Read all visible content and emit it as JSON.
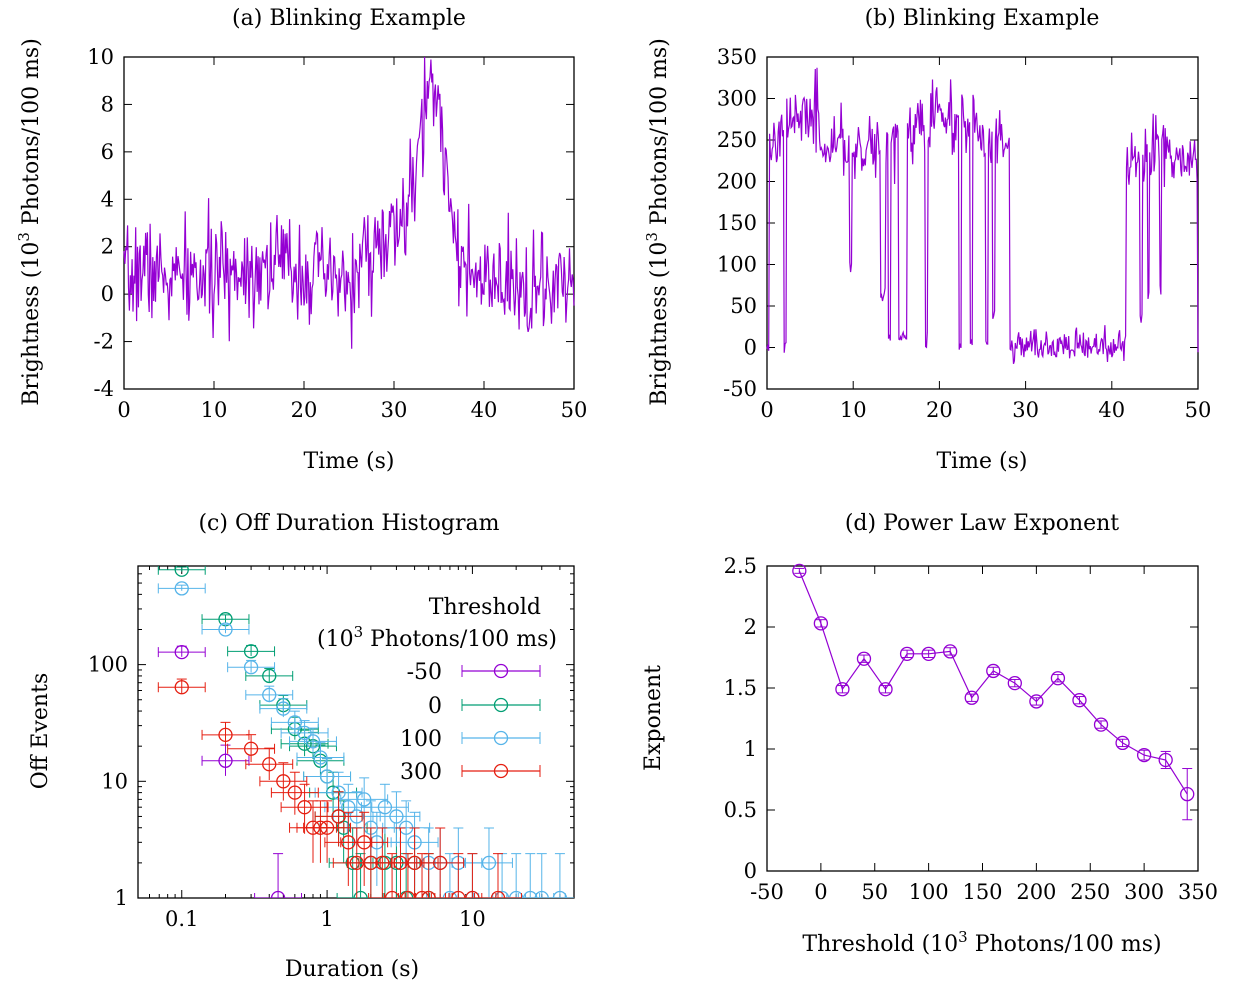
{
  "colors": {
    "purple": "#9400d3",
    "green": "#009e73",
    "lightblue": "#56b4e9",
    "red": "#e51e10",
    "axis": "#000000"
  },
  "chart_data": [
    {
      "id": "a",
      "type": "line",
      "title": "(a) Blinking Example",
      "xlabel": "Time (s)",
      "ylabel_prefix": "Brightness (10",
      "ylabel_sup": "3",
      "ylabel_suffix": " Photons/100 ms)",
      "xlim": [
        0,
        50
      ],
      "ylim": [
        -4,
        10
      ],
      "xticks": [
        0,
        10,
        20,
        30,
        40,
        50
      ],
      "yticks": [
        -4,
        -2,
        0,
        2,
        4,
        6,
        8,
        10
      ],
      "series": [
        {
          "color": "#9400d3",
          "dt": 0.1,
          "description": "Time trace sampled every 0.1 s over 0-50 s; values are the approximate segment levels (x in s, y in 10^3 photons/100 ms)",
          "profile": [
            [
              0,
              0.3
            ],
            [
              2,
              1.2
            ],
            [
              5,
              0.6
            ],
            [
              10,
              0.8
            ],
            [
              17,
              1.4
            ],
            [
              20,
              1.0
            ],
            [
              25,
              0.3
            ],
            [
              27,
              1.7
            ],
            [
              30,
              2.4
            ],
            [
              32,
              4.0
            ],
            [
              33.5,
              7.8
            ],
            [
              35,
              7.5
            ],
            [
              36,
              5.0
            ],
            [
              37.2,
              1.8
            ],
            [
              38,
              0.6
            ],
            [
              42,
              0.2
            ],
            [
              50,
              0.1
            ]
          ],
          "noise_sd": 1.05,
          "peak_max": 10.0,
          "min_value": -2.3
        }
      ]
    },
    {
      "id": "b",
      "type": "line",
      "title": "(b) Blinking Example",
      "xlabel": "Time (s)",
      "ylabel_prefix": "Brightness (10",
      "ylabel_sup": "3",
      "ylabel_suffix": " Photons/100 ms)",
      "xlim": [
        0,
        50
      ],
      "ylim": [
        -50,
        350
      ],
      "xticks": [
        0,
        10,
        20,
        30,
        40,
        50
      ],
      "yticks": [
        -50,
        0,
        50,
        100,
        150,
        200,
        250,
        300,
        350
      ],
      "series": [
        {
          "color": "#9400d3",
          "dt": 0.1,
          "description": "Blinking trace: on state ~240-290, off state ~0-20 between 28.3 s and 41.6 s, brief dips to the off level",
          "on_segments": [
            [
              0.3,
              28.2,
              252
            ],
            [
              41.7,
              50,
              225
            ]
          ],
          "on_profile": [
            [
              0.3,
              250
            ],
            [
              5,
              285
            ],
            [
              7,
              240
            ],
            [
              12,
              240
            ],
            [
              15,
              255
            ],
            [
              20,
              285
            ],
            [
              25,
              260
            ],
            [
              28.2,
              240
            ],
            [
              41.7,
              225
            ],
            [
              45,
              240
            ],
            [
              50,
              215
            ]
          ],
          "off_level": 2,
          "dips": [
            [
              2.0,
              2.3,
              5
            ],
            [
              9.5,
              9.8,
              100
            ],
            [
              13.1,
              13.7,
              60
            ],
            [
              14.0,
              14.3,
              10
            ],
            [
              15.2,
              16.2,
              12
            ],
            [
              18.3,
              18.6,
              10
            ],
            [
              22.3,
              22.6,
              0
            ],
            [
              23.6,
              23.9,
              5
            ],
            [
              25.4,
              25.7,
              5
            ],
            [
              26.2,
              26.5,
              40
            ],
            [
              43.3,
              43.6,
              40
            ],
            [
              44.2,
              44.4,
              60
            ],
            [
              45.6,
              45.8,
              70
            ]
          ],
          "peaks": [
            [
              5.8,
              337
            ],
            [
              21.3,
              323
            ],
            [
              45.1,
              280
            ]
          ],
          "min_value": -33
        }
      ]
    },
    {
      "id": "c",
      "type": "scatter",
      "title": "(c) Off Duration Histogram",
      "xlabel": "Duration (s)",
      "ylabel": "Off Events",
      "xscale": "log",
      "yscale": "log",
      "xlim": [
        0.05,
        50
      ],
      "ylim": [
        1,
        700
      ],
      "xticks": [
        0.1,
        1,
        10
      ],
      "xtick_labels": [
        "0.1",
        "1",
        "10"
      ],
      "yticks": [
        1,
        10,
        100
      ],
      "ytick_labels": [
        "1",
        "10",
        "100"
      ],
      "legend_title": "Threshold",
      "legend_subtitle_prefix": "(10",
      "legend_subtitle_sup": "3",
      "legend_subtitle_suffix": " Photons/100 ms)",
      "legend_position": "top-right",
      "series": [
        {
          "name": "-50",
          "color": "#9400d3",
          "points": [
            [
              0.1,
              128
            ],
            [
              0.2,
              15
            ],
            [
              0.46,
              1
            ]
          ]
        },
        {
          "name": "0",
          "color": "#009e73",
          "points": [
            [
              0.1,
              650
            ],
            [
              0.2,
              245
            ],
            [
              0.3,
              130
            ],
            [
              0.4,
              80
            ],
            [
              0.5,
              45
            ],
            [
              0.6,
              28
            ],
            [
              0.7,
              21
            ],
            [
              0.8,
              20
            ],
            [
              0.9,
              15
            ],
            [
              1.0,
              11
            ],
            [
              1.1,
              8
            ],
            [
              1.2,
              5
            ],
            [
              1.3,
              4
            ],
            [
              1.5,
              2
            ],
            [
              1.7,
              1
            ],
            [
              2.0,
              2
            ],
            [
              2.5,
              2
            ],
            [
              3.0,
              2
            ],
            [
              3.5,
              1
            ],
            [
              4.0,
              2
            ],
            [
              5.0,
              1
            ]
          ]
        },
        {
          "name": "100",
          "color": "#56b4e9",
          "points": [
            [
              0.1,
              450
            ],
            [
              0.2,
              200
            ],
            [
              0.3,
              95
            ],
            [
              0.4,
              55
            ],
            [
              0.5,
              42
            ],
            [
              0.6,
              32
            ],
            [
              0.7,
              26
            ],
            [
              0.8,
              22
            ],
            [
              0.9,
              16
            ],
            [
              1.0,
              11
            ],
            [
              1.2,
              8
            ],
            [
              1.4,
              6
            ],
            [
              1.6,
              5
            ],
            [
              1.8,
              7
            ],
            [
              2.0,
              4
            ],
            [
              2.2,
              3
            ],
            [
              2.5,
              6
            ],
            [
              3.0,
              5
            ],
            [
              3.5,
              4
            ],
            [
              4.0,
              3
            ],
            [
              5.0,
              2
            ],
            [
              6.0,
              2
            ],
            [
              7.0,
              1
            ],
            [
              8.0,
              2
            ],
            [
              10.0,
              1
            ],
            [
              13.0,
              2
            ],
            [
              16.0,
              1
            ],
            [
              20.0,
              1
            ],
            [
              25.0,
              1
            ],
            [
              30.0,
              1
            ],
            [
              40.0,
              1
            ]
          ]
        },
        {
          "name": "300",
          "color": "#e51e10",
          "points": [
            [
              0.1,
              64
            ],
            [
              0.2,
              25
            ],
            [
              0.3,
              19
            ],
            [
              0.4,
              14
            ],
            [
              0.5,
              10
            ],
            [
              0.6,
              8
            ],
            [
              0.7,
              6
            ],
            [
              0.8,
              4
            ],
            [
              0.9,
              4
            ],
            [
              1.0,
              4
            ],
            [
              1.2,
              5
            ],
            [
              1.4,
              3
            ],
            [
              1.6,
              2
            ],
            [
              1.8,
              3
            ],
            [
              2.0,
              2
            ],
            [
              2.4,
              2
            ],
            [
              2.8,
              1
            ],
            [
              3.2,
              2
            ],
            [
              3.6,
              1
            ],
            [
              4.0,
              2
            ],
            [
              4.5,
              1
            ],
            [
              5.0,
              1
            ],
            [
              6.0,
              2
            ],
            [
              8.0,
              1
            ],
            [
              10.0,
              1
            ],
            [
              15.0,
              1
            ]
          ]
        }
      ]
    },
    {
      "id": "d",
      "type": "line",
      "title": "(d) Power Law Exponent",
      "xlabel_prefix": "Threshold (10",
      "xlabel_sup": "3",
      "xlabel_suffix": " Photons/100 ms)",
      "ylabel": "Exponent",
      "xlim": [
        -50,
        350
      ],
      "ylim": [
        0,
        2.5
      ],
      "xticks": [
        -50,
        0,
        50,
        100,
        150,
        200,
        250,
        300,
        350
      ],
      "yticks": [
        0,
        0.5,
        1,
        1.5,
        2,
        2.5
      ],
      "ytick_labels": [
        "0",
        "0.5",
        "1",
        "1.5",
        "2",
        "2.5"
      ],
      "series": [
        {
          "color": "#9400d3",
          "points": [
            [
              -20,
              2.46
            ],
            [
              0,
              2.03
            ],
            [
              20,
              1.49
            ],
            [
              40,
              1.74
            ],
            [
              60,
              1.49
            ],
            [
              80,
              1.78
            ],
            [
              100,
              1.78
            ],
            [
              120,
              1.8
            ],
            [
              140,
              1.42
            ],
            [
              160,
              1.64
            ],
            [
              180,
              1.54
            ],
            [
              200,
              1.39
            ],
            [
              220,
              1.58
            ],
            [
              240,
              1.4
            ],
            [
              260,
              1.2
            ],
            [
              280,
              1.05
            ],
            [
              300,
              0.95
            ],
            [
              320,
              0.91
            ],
            [
              340,
              0.63
            ]
          ],
          "errors": [
            0.02,
            0.03,
            0.03,
            0.03,
            0.03,
            0.03,
            0.03,
            0.03,
            0.03,
            0.03,
            0.03,
            0.03,
            0.03,
            0.03,
            0.03,
            0.03,
            0.04,
            0.07,
            0.21
          ]
        }
      ]
    }
  ]
}
